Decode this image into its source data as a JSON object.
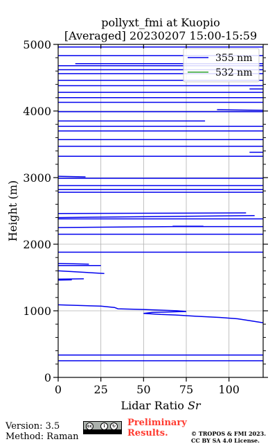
{
  "chart_data": {
    "type": "line",
    "title": "pollyxt_fmi at Kuopio",
    "subtitle": "[Averaged] 20230207 15:00-15:59",
    "xlabel": "Lidar Ratio [Sr]",
    "xlabel_main": "Lidar Ratio ",
    "xlabel_unit": "Sr",
    "ylabel": "Height (m)",
    "xlim": [
      0,
      120
    ],
    "ylim": [
      0,
      5000
    ],
    "xticks": [
      0,
      25,
      50,
      75,
      100
    ],
    "yticks": [
      0,
      1000,
      2000,
      3000,
      4000,
      5000
    ],
    "grid": true,
    "legend_placement": "top-right",
    "series": [
      {
        "name": "355 nm",
        "color": "#0000ee",
        "segments": [
          [
            [
              0,
              250
            ],
            [
              120,
              250
            ]
          ],
          [
            [
              0,
              335
            ],
            [
              120,
              335
            ]
          ],
          [
            [
              0,
              1090
            ],
            [
              25,
              1070
            ],
            [
              33,
              1050
            ],
            [
              35,
              1030
            ],
            [
              50,
              1020
            ],
            [
              65,
              1005
            ],
            [
              70,
              1000
            ],
            [
              75,
              990
            ],
            [
              55,
              975
            ],
            [
              50,
              960
            ],
            [
              60,
              945
            ],
            [
              70,
              935
            ],
            [
              80,
              920
            ],
            [
              95,
              900
            ],
            [
              105,
              880
            ],
            [
              110,
              860
            ],
            [
              120,
              820
            ]
          ],
          [
            [
              0,
              1460
            ],
            [
              8,
              1465
            ]
          ],
          [
            [
              0,
              1475
            ],
            [
              15,
              1480
            ]
          ],
          [
            [
              0,
              1600
            ],
            [
              27,
              1560
            ]
          ],
          [
            [
              0,
              1680
            ],
            [
              25,
              1680
            ]
          ],
          [
            [
              0,
              1710
            ],
            [
              18,
              1700
            ]
          ],
          [
            [
              0,
              1880
            ],
            [
              120,
              1880
            ]
          ],
          [
            [
              0,
              2150
            ],
            [
              120,
              2150
            ]
          ],
          [
            [
              0,
              2250
            ],
            [
              68,
              2265
            ],
            [
              120,
              2265
            ]
          ],
          [
            [
              67,
              2270
            ],
            [
              85,
              2270
            ]
          ],
          [
            [
              0,
              2380
            ],
            [
              120,
              2380
            ]
          ],
          [
            [
              0,
              2400
            ],
            [
              115,
              2430
            ]
          ],
          [
            [
              0,
              2460
            ],
            [
              110,
              2470
            ]
          ],
          [
            [
              0,
              2780
            ],
            [
              120,
              2780
            ]
          ],
          [
            [
              0,
              2820
            ],
            [
              120,
              2820
            ]
          ],
          [
            [
              0,
              2880
            ],
            [
              120,
              2880
            ]
          ],
          [
            [
              0,
              2990
            ],
            [
              120,
              2990
            ]
          ],
          [
            [
              0,
              3020
            ],
            [
              16,
              3010
            ]
          ],
          [
            [
              0,
              3320
            ],
            [
              120,
              3320
            ]
          ],
          [
            [
              112,
              3380
            ],
            [
              120,
              3380
            ]
          ],
          [
            [
              0,
              3470
            ],
            [
              120,
              3470
            ]
          ],
          [
            [
              0,
              3570
            ],
            [
              120,
              3570
            ]
          ],
          [
            [
              0,
              3700
            ],
            [
              120,
              3700
            ]
          ],
          [
            [
              0,
              3770
            ],
            [
              120,
              3770
            ]
          ],
          [
            [
              0,
              3850
            ],
            [
              86,
              3850
            ]
          ],
          [
            [
              0,
              3990
            ],
            [
              120,
              3990
            ]
          ],
          [
            [
              93,
              4020
            ],
            [
              120,
              4010
            ]
          ],
          [
            [
              0,
              4130
            ],
            [
              120,
              4130
            ]
          ],
          [
            [
              0,
              4200
            ],
            [
              120,
              4200
            ]
          ],
          [
            [
              0,
              4280
            ],
            [
              120,
              4280
            ]
          ],
          [
            [
              112,
              4330
            ],
            [
              120,
              4330
            ]
          ],
          [
            [
              0,
              4380
            ],
            [
              120,
              4380
            ]
          ],
          [
            [
              0,
              4460
            ],
            [
              120,
              4460
            ]
          ],
          [
            [
              0,
              4560
            ],
            [
              120,
              4560
            ]
          ],
          [
            [
              0,
              4620
            ],
            [
              120,
              4620
            ]
          ],
          [
            [
              0,
              4680
            ],
            [
              120,
              4680
            ]
          ],
          [
            [
              10,
              4710
            ],
            [
              120,
              4710
            ]
          ],
          [
            [
              0,
              4830
            ],
            [
              120,
              4830
            ]
          ],
          [
            [
              0,
              4960
            ],
            [
              120,
              4960
            ]
          ]
        ]
      },
      {
        "name": "532 nm",
        "color": "#2ca02c",
        "segments": []
      }
    ]
  },
  "footer": {
    "version": "Version: 3.5",
    "method": "Method: Raman",
    "preliminary_line1": "Preliminary",
    "preliminary_line2": "Results.",
    "copyright": "© TROPOS & FMI 2023.",
    "license": "CC BY SA 4.0 License."
  },
  "badge": {
    "cc": "cc",
    "by": "i",
    "sa": "↻"
  }
}
